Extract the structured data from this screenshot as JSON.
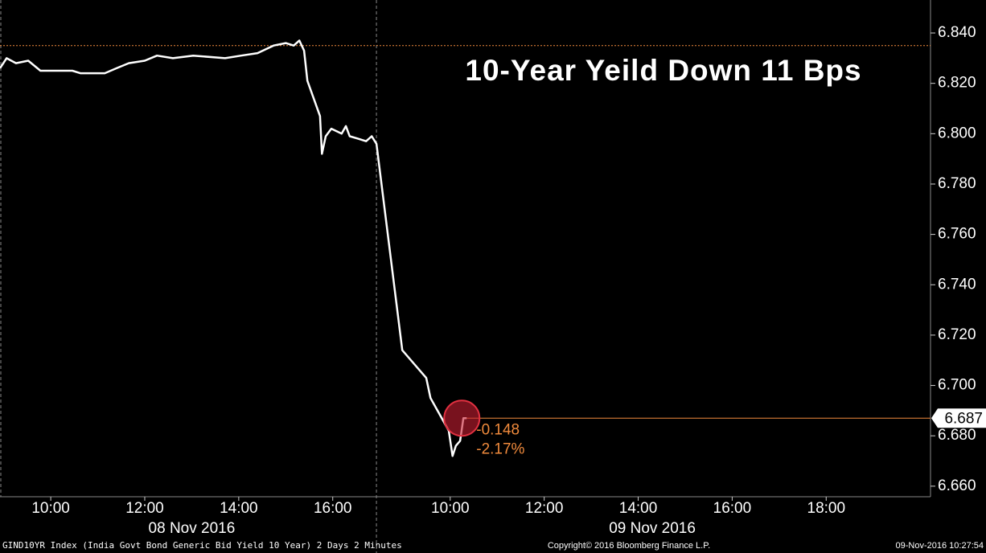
{
  "chart_data": {
    "type": "line",
    "title": "10-Year Yeild Down 11 Bps",
    "series": [
      {
        "name": "GIND10YR Index",
        "color": "#ffffff",
        "x": [
          8.92,
          9.06,
          9.26,
          9.52,
          9.78,
          10.12,
          10.46,
          10.63,
          11.15,
          11.4,
          11.66,
          12.0,
          12.26,
          12.6,
          13.03,
          13.71,
          14.05,
          14.4,
          14.74,
          15.0,
          15.17,
          15.29,
          15.39,
          15.46,
          15.73,
          15.77,
          15.85,
          15.97,
          16.19,
          16.28,
          16.36,
          16.54,
          16.71,
          16.83,
          16.93,
          17.48,
          17.99,
          18.08,
          18.47,
          18.55,
          18.62,
          18.71,
          18.78,
          18.85
        ],
        "values": [
          6.826,
          6.83,
          6.828,
          6.829,
          6.825,
          6.825,
          6.825,
          6.824,
          6.824,
          6.826,
          6.828,
          6.829,
          6.831,
          6.83,
          6.831,
          6.83,
          6.831,
          6.832,
          6.835,
          6.836,
          6.835,
          6.837,
          6.833,
          6.821,
          6.807,
          6.792,
          6.799,
          6.802,
          6.8,
          6.803,
          6.799,
          6.798,
          6.797,
          6.799,
          6.796,
          6.714,
          6.703,
          6.695,
          6.682,
          6.672,
          6.676,
          6.678,
          6.687,
          6.687
        ]
      }
    ],
    "xlim": [
      8.92,
      28.72
    ],
    "xticks": [
      {
        "value": 10,
        "label": "10:00"
      },
      {
        "value": 12,
        "label": "12:00"
      },
      {
        "value": 14,
        "label": "14:00"
      },
      {
        "value": 16,
        "label": "16:00"
      },
      {
        "value": 18.5,
        "label": "10:00"
      },
      {
        "value": 20.5,
        "label": "12:00"
      },
      {
        "value": 22.5,
        "label": "14:00"
      },
      {
        "value": 24.5,
        "label": "16:00"
      },
      {
        "value": 26.5,
        "label": "18:00"
      }
    ],
    "days": [
      {
        "label": "08 Nov 2016",
        "value": 13.0
      },
      {
        "label": "09 Nov 2016",
        "value": 22.8
      }
    ],
    "day_divider": 16.93,
    "ylim": [
      6.6558,
      6.8531
    ],
    "yticks": [
      {
        "value": 6.84,
        "label": "6.840"
      },
      {
        "value": 6.82,
        "label": "6.820"
      },
      {
        "value": 6.8,
        "label": "6.800"
      },
      {
        "value": 6.78,
        "label": "6.780"
      },
      {
        "value": 6.76,
        "label": "6.760"
      },
      {
        "value": 6.74,
        "label": "6.740"
      },
      {
        "value": 6.72,
        "label": "6.720"
      },
      {
        "value": 6.7,
        "label": "6.700"
      },
      {
        "value": 6.68,
        "label": "6.680"
      },
      {
        "value": 6.66,
        "label": "6.660"
      }
    ],
    "reference_line": 6.835,
    "last_value": 6.687,
    "change": "-0.148",
    "change_pct": "-2.17%",
    "footer_left": "GIND10YR Index (India Govt Bond Generic Bid Yield 10 Year) 2 Days 2 Minutes",
    "footer_center": "Copyright© 2016 Bloomberg Finance L.P.",
    "footer_right": "09-Nov-2016 10:27:54"
  }
}
